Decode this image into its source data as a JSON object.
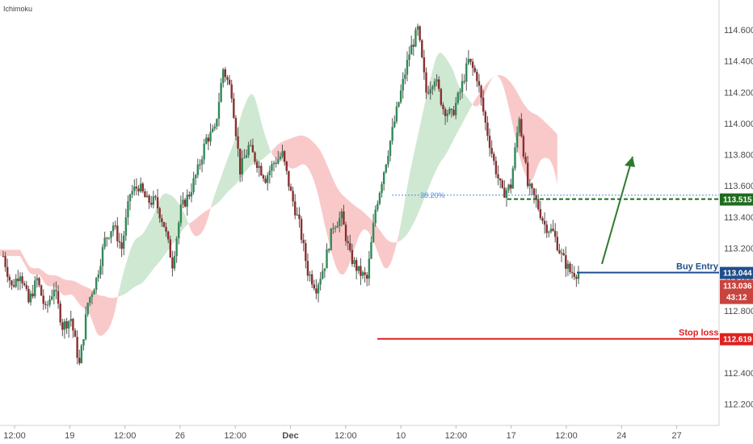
{
  "indicator_label": "Ichimoku",
  "colors": {
    "bull": "#2e8b57",
    "bear": "#8b2e2e",
    "wick": "#555555",
    "cloud_bull": "#cfe8d2",
    "cloud_bear": "#f9c9c9",
    "fib": "#4d8fd6",
    "target": "#1e6b1e",
    "entry": "#1f4e8c",
    "stop": "#e02020",
    "last_price": "#c9443f",
    "arrow": "#2d7a2d"
  },
  "chart_data": {
    "type": "candlestick",
    "title": "",
    "ylim": [
      112.1,
      114.75
    ],
    "y_ticks": [
      112.2,
      112.4,
      112.6,
      112.8,
      113.0,
      113.2,
      113.4,
      113.6,
      113.8,
      114.0,
      114.2,
      114.4,
      114.6
    ],
    "x_ticks": [
      "12:00",
      "19",
      "12:00",
      "26",
      "12:00",
      "Dec",
      "12:00",
      "10",
      "12:00",
      "17",
      "12:00",
      "24",
      "27"
    ],
    "grid": false,
    "price_path": [
      [
        0,
        113.15
      ],
      [
        4,
        112.95
      ],
      [
        8,
        113.05
      ],
      [
        12,
        112.85
      ],
      [
        16,
        113.0
      ],
      [
        20,
        112.8
      ],
      [
        24,
        112.95
      ],
      [
        28,
        112.7
      ],
      [
        32,
        112.75
      ],
      [
        36,
        112.45
      ],
      [
        40,
        112.85
      ],
      [
        44,
        113.0
      ],
      [
        48,
        113.25
      ],
      [
        52,
        113.35
      ],
      [
        56,
        113.2
      ],
      [
        60,
        113.55
      ],
      [
        64,
        113.6
      ],
      [
        68,
        113.5
      ],
      [
        72,
        113.5
      ],
      [
        76,
        113.35
      ],
      [
        80,
        113.1
      ],
      [
        84,
        113.45
      ],
      [
        88,
        113.55
      ],
      [
        92,
        113.7
      ],
      [
        96,
        113.9
      ],
      [
        100,
        113.95
      ],
      [
        104,
        114.35
      ],
      [
        108,
        114.2
      ],
      [
        112,
        113.7
      ],
      [
        116,
        113.85
      ],
      [
        120,
        113.75
      ],
      [
        124,
        113.65
      ],
      [
        128,
        113.75
      ],
      [
        132,
        113.8
      ],
      [
        136,
        113.55
      ],
      [
        140,
        113.35
      ],
      [
        144,
        113.05
      ],
      [
        148,
        112.95
      ],
      [
        152,
        113.1
      ],
      [
        156,
        113.35
      ],
      [
        160,
        113.4
      ],
      [
        164,
        113.15
      ],
      [
        168,
        113.05
      ],
      [
        172,
        113.0
      ],
      [
        176,
        113.45
      ],
      [
        180,
        113.7
      ],
      [
        184,
        113.95
      ],
      [
        188,
        114.2
      ],
      [
        192,
        114.45
      ],
      [
        196,
        114.6
      ],
      [
        200,
        114.2
      ],
      [
        204,
        114.3
      ],
      [
        208,
        114.1
      ],
      [
        212,
        114.05
      ],
      [
        216,
        114.2
      ],
      [
        220,
        114.4
      ],
      [
        224,
        114.3
      ],
      [
        228,
        114.0
      ],
      [
        232,
        113.75
      ],
      [
        236,
        113.55
      ],
      [
        240,
        113.6
      ],
      [
        244,
        114.05
      ],
      [
        248,
        113.6
      ],
      [
        252,
        113.5
      ],
      [
        256,
        113.35
      ],
      [
        260,
        113.3
      ],
      [
        264,
        113.15
      ],
      [
        268,
        113.05
      ],
      [
        272,
        113.04
      ]
    ],
    "cloud": [
      {
        "start": 15,
        "end": 27,
        "polarity": "bear",
        "upper": [
          113.0,
          112.95,
          112.9,
          112.95,
          112.85,
          112.8,
          112.75,
          112.75,
          112.7,
          112.65,
          112.6,
          112.65,
          112.8
        ],
        "lower": [
          112.95,
          112.9,
          112.85,
          112.9,
          112.8,
          112.75,
          112.7,
          112.7,
          112.65,
          112.6,
          112.55,
          112.6,
          112.75
        ]
      },
      {
        "start": 27,
        "end": 70,
        "polarity": "bull",
        "upper": [
          112.8,
          112.85,
          112.95,
          113.05,
          113.15,
          113.25,
          113.35,
          113.45,
          113.5,
          113.55,
          113.6,
          113.62,
          113.6,
          113.55,
          113.5,
          113.48,
          113.46,
          113.45,
          113.45,
          113.45,
          113.5,
          113.55,
          113.58,
          113.6,
          113.6,
          113.6,
          113.58,
          113.56,
          113.55,
          113.55,
          113.55,
          113.55,
          113.55,
          113.55,
          113.55,
          113.55,
          113.55,
          113.55,
          113.55,
          113.55,
          113.55,
          113.55,
          113.55,
          113.55
        ],
        "lower": [
          112.75,
          112.72,
          112.7,
          112.7,
          112.72,
          112.75,
          112.8,
          112.85,
          112.9,
          112.95,
          113.05,
          113.15,
          113.2,
          113.25,
          113.3,
          113.35,
          113.38,
          113.4,
          113.42,
          113.4,
          113.42,
          113.45,
          113.48,
          113.5,
          113.5,
          113.5,
          113.5,
          113.5,
          113.5,
          113.5,
          113.5,
          113.5,
          113.5,
          113.5,
          113.5,
          113.5,
          113.5,
          113.5,
          113.5,
          113.5,
          113.5,
          113.5,
          113.5,
          113.5
        ]
      }
    ],
    "levels": {
      "fib": {
        "label": "38.20%",
        "value": 113.54
      },
      "target": {
        "label": "113.515",
        "value": 113.515
      },
      "entry": {
        "label": "Buy Entry",
        "tag": "113.044",
        "value": 113.044
      },
      "last": {
        "tag": "113.036",
        "countdown": "43:12",
        "value": 113.036
      },
      "stop": {
        "label": "Stop loss",
        "tag": "112.619",
        "value": 112.619
      }
    }
  }
}
